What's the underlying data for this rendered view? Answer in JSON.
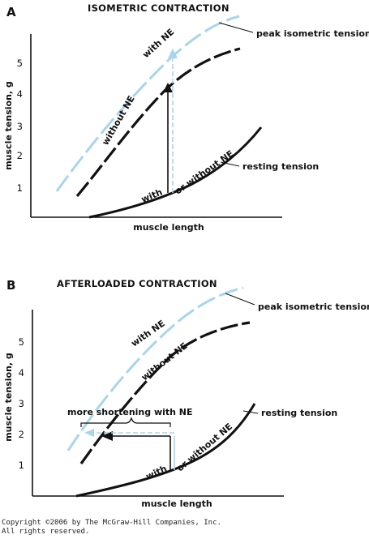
{
  "chart_data": [
    {
      "type": "line",
      "panel": "A",
      "title": "ISOMETRIC CONTRACTION",
      "xlabel": "muscle length",
      "ylabel": "muscle tension, g",
      "ylim": [
        0,
        6
      ],
      "yticks": [
        1,
        2,
        3,
        4,
        5
      ],
      "series": [
        {
          "name": "with NE",
          "color": "#a9d5ec",
          "dashed": true,
          "x": [
            0.06,
            0.2,
            0.35,
            0.5,
            0.65,
            0.8,
            0.95
          ],
          "y": [
            0.9,
            2.2,
            3.5,
            4.6,
            5.4,
            5.95,
            6.2
          ]
        },
        {
          "name": "without NE",
          "color": "#111111",
          "dashed": true,
          "x": [
            0.14,
            0.3,
            0.45,
            0.6,
            0.75,
            0.9
          ],
          "y": [
            0.7,
            1.9,
            3.1,
            4.2,
            4.9,
            5.4
          ]
        },
        {
          "name": "resting tension",
          "color": "#111111",
          "dashed": false,
          "x": [
            0.18,
            0.35,
            0.5,
            0.65,
            0.8,
            0.98
          ],
          "y": [
            0.0,
            0.3,
            0.8,
            1.5,
            2.1,
            2.9
          ]
        }
      ],
      "annotations": [
        "peak isometric tension",
        "with NE",
        "without NE",
        "with",
        "or without NE",
        "resting tension"
      ]
    },
    {
      "type": "line",
      "panel": "B",
      "title": "AFTERLOADED CONTRACTION",
      "xlabel": "muscle length",
      "ylabel": "muscle tension, g",
      "ylim": [
        0,
        6
      ],
      "yticks": [
        1,
        2,
        3,
        4,
        5
      ],
      "series": [
        {
          "name": "with NE",
          "color": "#a9d5ec",
          "dashed": true,
          "x": [
            0.1,
            0.25,
            0.4,
            0.55,
            0.7,
            0.85,
            0.98
          ],
          "y": [
            1.5,
            2.8,
            3.9,
            4.8,
            5.5,
            5.95,
            6.1
          ]
        },
        {
          "name": "without NE",
          "color": "#111111",
          "dashed": true,
          "x": [
            0.16,
            0.3,
            0.45,
            0.6,
            0.75,
            0.9
          ],
          "y": [
            1.0,
            2.3,
            3.5,
            4.4,
            5.1,
            5.5
          ]
        },
        {
          "name": "resting tension",
          "color": "#111111",
          "dashed": false,
          "x": [
            0.18,
            0.35,
            0.5,
            0.65,
            0.8,
            0.98
          ],
          "y": [
            0.0,
            0.35,
            0.8,
            1.3,
            1.9,
            2.8
          ]
        }
      ],
      "annotations": [
        "peak isometric tension",
        "with NE",
        "without NE",
        "more shortening with NE",
        "with",
        "or without NE",
        "resting tension"
      ]
    }
  ],
  "panel_a": {
    "letter": "A",
    "title": "ISOMETRIC CONTRACTION",
    "ylabel": "muscle tension, g",
    "xlabel": "muscle length",
    "ticks": [
      "1",
      "2",
      "3",
      "4",
      "5"
    ],
    "label_with_ne": "with NE",
    "label_without_ne": "without NE",
    "label_peak": "peak isometric tension",
    "label_resting": "resting tension",
    "label_with": "with",
    "label_or_without": "or without NE"
  },
  "panel_b": {
    "letter": "B",
    "title": "AFTERLOADED CONTRACTION",
    "ylabel": "muscle tension, g",
    "xlabel": "muscle length",
    "ticks": [
      "1",
      "2",
      "3",
      "4",
      "5"
    ],
    "label_with_ne": "with NE",
    "label_without_ne": "without NE",
    "label_peak": "peak isometric tension",
    "label_resting": "resting tension",
    "label_with": "with",
    "label_or_without": "or without NE",
    "label_more_shortening": "more shortening with NE"
  },
  "colors": {
    "ne": "#a9d5ec",
    "ink": "#111111"
  },
  "copyright_line1": "Copyright ©2006 by The McGraw-Hill Companies, Inc.",
  "copyright_line2": "All rights reserved."
}
